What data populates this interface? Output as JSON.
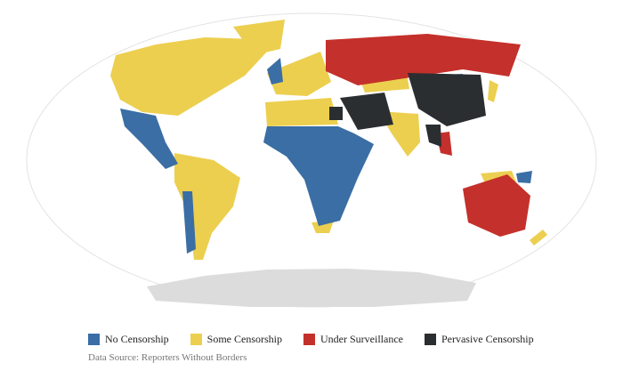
{
  "legend": [
    {
      "label": "No Censorship",
      "color": "#3a6ea5"
    },
    {
      "label": "Some Censorship",
      "color": "#eccf4f"
    },
    {
      "label": "Under Surveillance",
      "color": "#c4302b"
    },
    {
      "label": "Pervasive Censorship",
      "color": "#2b2e31"
    }
  ],
  "source": "Data Source: Reporters Without Borders",
  "colors": {
    "antarctica": "#dcdcdc",
    "outline": "#e3e3e3"
  }
}
